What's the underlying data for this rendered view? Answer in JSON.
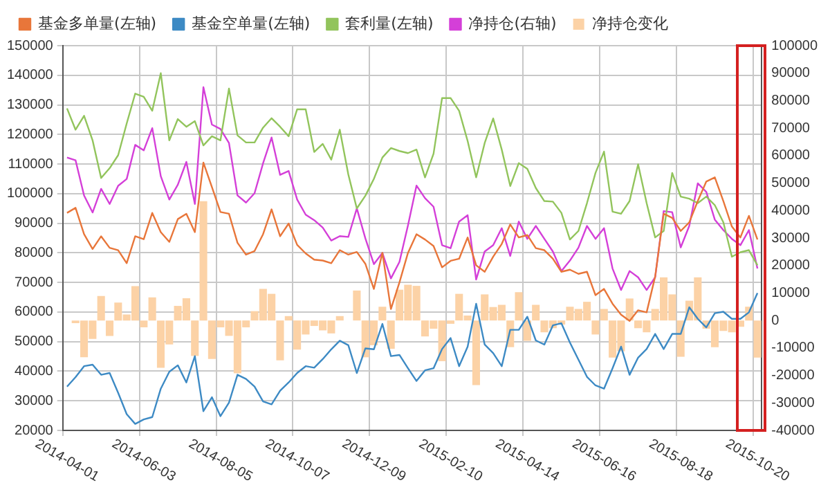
{
  "chart_data": {
    "type": "line",
    "categories": [
      "2014-04-01",
      null,
      null,
      null,
      null,
      null,
      null,
      null,
      null,
      "2014-06-03",
      null,
      null,
      null,
      null,
      null,
      null,
      null,
      null,
      "2014-08-05",
      null,
      null,
      null,
      null,
      null,
      null,
      null,
      null,
      "2014-10-07",
      null,
      null,
      null,
      null,
      null,
      null,
      null,
      null,
      "2014-12-09",
      null,
      null,
      null,
      null,
      null,
      null,
      null,
      null,
      "2015-02-10",
      null,
      null,
      null,
      null,
      null,
      null,
      null,
      null,
      "2015-04-14",
      null,
      null,
      null,
      null,
      null,
      null,
      null,
      null,
      "2015-06-16",
      null,
      null,
      null,
      null,
      null,
      null,
      null,
      null,
      "2015-08-18",
      null,
      null,
      null,
      null,
      null,
      null,
      null,
      null,
      "2015-10-20"
    ],
    "series": [
      {
        "name": "基金多单量(左轴)",
        "color": "#e8763a",
        "values": [
          93500,
          95200,
          86300,
          81300,
          85600,
          81700,
          80900,
          76500,
          85600,
          84600,
          93500,
          87000,
          83700,
          91400,
          93200,
          87000,
          110500,
          102200,
          93800,
          93200,
          83400,
          79400,
          80600,
          86300,
          94700,
          85600,
          89900,
          82700,
          79800,
          77700,
          77400,
          76500,
          80900,
          79400,
          80300,
          76300,
          67800,
          80000,
          61000,
          70000,
          80000,
          86300,
          84500,
          82300,
          75100,
          77300,
          78000,
          85200,
          75800,
          73600,
          78700,
          83000,
          89600,
          85200,
          86000,
          81600,
          80900,
          78000,
          73600,
          74300,
          72900,
          73600,
          65700,
          67800,
          62800,
          59100,
          57000,
          60600,
          59900,
          72000,
          93200,
          91800,
          87400,
          90300,
          97500,
          104100,
          105500,
          97500,
          88900,
          85200,
          92500,
          84500
        ]
      },
      {
        "name": "基金空单量(左轴)",
        "color": "#3d8ac4",
        "values": [
          34800,
          38000,
          41700,
          42200,
          38800,
          39400,
          32700,
          25500,
          22200,
          23700,
          24500,
          34100,
          39800,
          42000,
          36200,
          45100,
          26500,
          31200,
          24800,
          29400,
          38800,
          37400,
          34800,
          29800,
          28800,
          33400,
          36200,
          39400,
          41700,
          41200,
          44100,
          47400,
          50300,
          48800,
          39400,
          47700,
          47400,
          56000,
          45100,
          45500,
          41000,
          36700,
          40300,
          41000,
          47500,
          51200,
          41700,
          48300,
          62800,
          49000,
          46100,
          41700,
          54000,
          54000,
          58400,
          50400,
          49000,
          55500,
          56200,
          49700,
          43900,
          38100,
          35200,
          34100,
          41000,
          48300,
          38800,
          44600,
          47500,
          52600,
          47500,
          52600,
          52600,
          61600,
          57700,
          54800,
          59600,
          60100,
          57700,
          57700,
          59900,
          66400
        ]
      },
      {
        "name": "套利量(左轴)",
        "color": "#92c45c",
        "values": [
          128800,
          121600,
          126300,
          118000,
          105300,
          108600,
          113000,
          123700,
          133800,
          132700,
          128000,
          140700,
          118000,
          125200,
          122600,
          124500,
          116300,
          119400,
          118000,
          135500,
          119700,
          117300,
          117300,
          122300,
          125500,
          122600,
          119400,
          128500,
          128500,
          114100,
          116800,
          111500,
          121600,
          106500,
          95000,
          99300,
          105000,
          112200,
          115400,
          114400,
          113700,
          114900,
          105500,
          113500,
          132300,
          132300,
          128000,
          117800,
          105500,
          117100,
          125400,
          114900,
          102600,
          110300,
          108400,
          101900,
          97500,
          97300,
          93500,
          84500,
          87400,
          96800,
          107000,
          114200,
          93900,
          93200,
          97500,
          109900,
          96800,
          85200,
          87400,
          107000,
          99000,
          98300,
          96800,
          99000,
          96100,
          90300,
          78700,
          80200,
          80900,
          75800
        ]
      },
      {
        "name": "净持仓(右轴)",
        "axis": "y2",
        "color": "#d43fd8",
        "values": [
          59300,
          58300,
          45500,
          39300,
          47900,
          42400,
          49000,
          51500,
          63900,
          61900,
          70000,
          52500,
          44000,
          49400,
          57700,
          42400,
          84900,
          71300,
          69700,
          64600,
          45500,
          42900,
          46300,
          57200,
          66600,
          53000,
          54400,
          44000,
          38500,
          36500,
          33800,
          29100,
          30700,
          30400,
          40800,
          29900,
          20500,
          24600,
          15300,
          21300,
          34600,
          49100,
          44500,
          41400,
          27400,
          26300,
          36000,
          38300,
          14900,
          25100,
          27400,
          33600,
          23500,
          36000,
          29700,
          34400,
          29700,
          25100,
          18000,
          21800,
          26500,
          34400,
          29700,
          33600,
          18900,
          11100,
          18000,
          15700,
          11100,
          15700,
          39800,
          39400,
          26600,
          34400,
          49900,
          46800,
          36700,
          32900,
          29700,
          27400,
          32900,
          18900
        ]
      },
      {
        "name": "净持仓变化",
        "type": "bar",
        "axis": "y2",
        "color": "#fcd2a6",
        "values": [
          null,
          -1000,
          -13400,
          -6700,
          8900,
          -5600,
          6500,
          2200,
          12500,
          -2500,
          8400,
          -17200,
          -8700,
          5300,
          8100,
          -12900,
          43400,
          -14000,
          -2500,
          -5600,
          -19200,
          -2500,
          3400,
          11500,
          9700,
          -14500,
          1600,
          -10600,
          -5100,
          -2000,
          -3600,
          -4700,
          1600,
          null,
          10900,
          -13400,
          -9000,
          5000,
          -10300,
          11200,
          13000,
          12600,
          -5800,
          -3000,
          -14800,
          -1200,
          9700,
          1800,
          -23500,
          9500,
          4900,
          5700,
          -9700,
          10300,
          -7400,
          5700,
          -4300,
          -2800,
          -1500,
          5000,
          4200,
          6800,
          -5100,
          4200,
          -13500,
          -11200,
          8000,
          -2800,
          -4300,
          4200,
          15700,
          9500,
          -13200,
          7200,
          15700,
          -3000,
          -9700,
          -3800,
          -4300,
          -2300,
          5000,
          -13500
        ]
      }
    ],
    "ylim": [
      20000,
      150000
    ],
    "yticks": [
      20000,
      30000,
      40000,
      50000,
      60000,
      70000,
      80000,
      90000,
      100000,
      110000,
      120000,
      130000,
      140000,
      150000
    ],
    "y2lim": [
      -40000,
      100000
    ],
    "y2ticks": [
      -40000,
      -30000,
      -20000,
      -10000,
      0,
      10000,
      20000,
      30000,
      40000,
      50000,
      60000,
      70000,
      80000,
      90000,
      100000
    ],
    "grid": true,
    "legend": "top",
    "marker": "none",
    "line_style": "solid"
  }
}
